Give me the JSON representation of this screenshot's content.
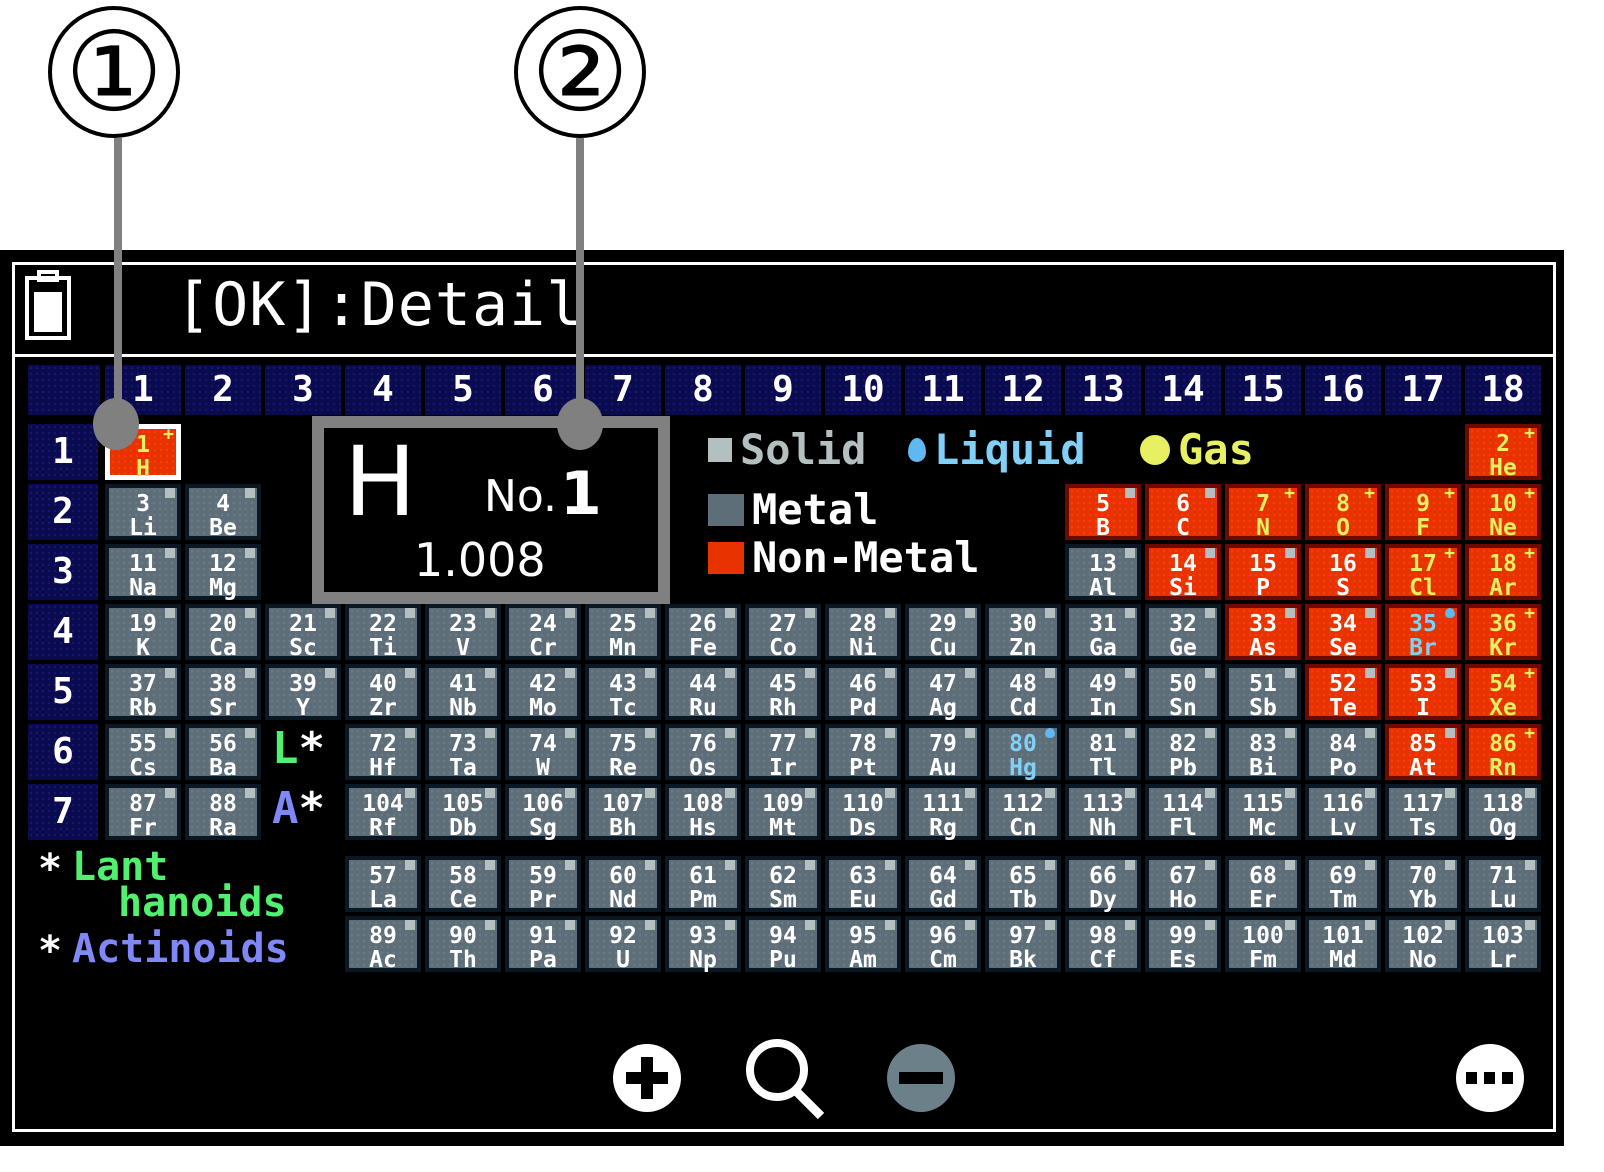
{
  "callouts": [
    "①",
    "②"
  ],
  "header": {
    "title": "[OK]:Detail",
    "battery_icon": "battery-icon"
  },
  "groups": [
    "1",
    "2",
    "3",
    "4",
    "5",
    "6",
    "7",
    "8",
    "9",
    "10",
    "11",
    "12",
    "13",
    "14",
    "15",
    "16",
    "17",
    "18"
  ],
  "periods": [
    "1",
    "2",
    "3",
    "4",
    "5",
    "6",
    "7"
  ],
  "detail": {
    "symbol": "H",
    "number_label": "No.",
    "number": "1",
    "mass": "1.008"
  },
  "legend": {
    "solid": "Solid",
    "liquid": "Liquid",
    "gas": "Gas",
    "metal": "Metal",
    "nonmetal": "Non-Metal"
  },
  "colors": {
    "metal": "#5e6e78",
    "nonmetal": "#e83200",
    "solid": "#b4c0c0",
    "liquid": "#80d0f8",
    "gas": "#e6f060",
    "lanthanoid": "#50f070",
    "actinoid": "#8088f8",
    "header": "#0a0a4e"
  },
  "series": {
    "lanthanoid_marker": "L",
    "actinoid_marker": "A",
    "star": "*",
    "lanthanoid_line1": "Lant",
    "lanthanoid_line2": "hanoids",
    "actinoid": "Actinoids"
  },
  "selected": 1,
  "elements": [
    [
      1,
      "H",
      "N",
      "g"
    ],
    [
      2,
      "He",
      "N",
      "g"
    ],
    [
      3,
      "Li",
      "M",
      "s"
    ],
    [
      4,
      "Be",
      "M",
      "s"
    ],
    [
      5,
      "B",
      "N",
      "s"
    ],
    [
      6,
      "C",
      "N",
      "s"
    ],
    [
      7,
      "N",
      "N",
      "g"
    ],
    [
      8,
      "O",
      "N",
      "g"
    ],
    [
      9,
      "F",
      "N",
      "g"
    ],
    [
      10,
      "Ne",
      "N",
      "g"
    ],
    [
      11,
      "Na",
      "M",
      "s"
    ],
    [
      12,
      "Mg",
      "M",
      "s"
    ],
    [
      13,
      "Al",
      "M",
      "s"
    ],
    [
      14,
      "Si",
      "N",
      "s"
    ],
    [
      15,
      "P",
      "N",
      "s"
    ],
    [
      16,
      "S",
      "N",
      "s"
    ],
    [
      17,
      "Cl",
      "N",
      "g"
    ],
    [
      18,
      "Ar",
      "N",
      "g"
    ],
    [
      19,
      "K",
      "M",
      "s"
    ],
    [
      20,
      "Ca",
      "M",
      "s"
    ],
    [
      21,
      "Sc",
      "M",
      "s"
    ],
    [
      22,
      "Ti",
      "M",
      "s"
    ],
    [
      23,
      "V",
      "M",
      "s"
    ],
    [
      24,
      "Cr",
      "M",
      "s"
    ],
    [
      25,
      "Mn",
      "M",
      "s"
    ],
    [
      26,
      "Fe",
      "M",
      "s"
    ],
    [
      27,
      "Co",
      "M",
      "s"
    ],
    [
      28,
      "Ni",
      "M",
      "s"
    ],
    [
      29,
      "Cu",
      "M",
      "s"
    ],
    [
      30,
      "Zn",
      "M",
      "s"
    ],
    [
      31,
      "Ga",
      "M",
      "s"
    ],
    [
      32,
      "Ge",
      "M",
      "s"
    ],
    [
      33,
      "As",
      "N",
      "s"
    ],
    [
      34,
      "Se",
      "N",
      "s"
    ],
    [
      35,
      "Br",
      "N",
      "l"
    ],
    [
      36,
      "Kr",
      "N",
      "g"
    ],
    [
      37,
      "Rb",
      "M",
      "s"
    ],
    [
      38,
      "Sr",
      "M",
      "s"
    ],
    [
      39,
      "Y",
      "M",
      "s"
    ],
    [
      40,
      "Zr",
      "M",
      "s"
    ],
    [
      41,
      "Nb",
      "M",
      "s"
    ],
    [
      42,
      "Mo",
      "M",
      "s"
    ],
    [
      43,
      "Tc",
      "M",
      "s"
    ],
    [
      44,
      "Ru",
      "M",
      "s"
    ],
    [
      45,
      "Rh",
      "M",
      "s"
    ],
    [
      46,
      "Pd",
      "M",
      "s"
    ],
    [
      47,
      "Ag",
      "M",
      "s"
    ],
    [
      48,
      "Cd",
      "M",
      "s"
    ],
    [
      49,
      "In",
      "M",
      "s"
    ],
    [
      50,
      "Sn",
      "M",
      "s"
    ],
    [
      51,
      "Sb",
      "M",
      "s"
    ],
    [
      52,
      "Te",
      "N",
      "s"
    ],
    [
      53,
      "I",
      "N",
      "s"
    ],
    [
      54,
      "Xe",
      "N",
      "g"
    ],
    [
      55,
      "Cs",
      "M",
      "s"
    ],
    [
      56,
      "Ba",
      "M",
      "s"
    ],
    [
      57,
      "La",
      "M",
      "s"
    ],
    [
      58,
      "Ce",
      "M",
      "s"
    ],
    [
      59,
      "Pr",
      "M",
      "s"
    ],
    [
      60,
      "Nd",
      "M",
      "s"
    ],
    [
      61,
      "Pm",
      "M",
      "s"
    ],
    [
      62,
      "Sm",
      "M",
      "s"
    ],
    [
      63,
      "Eu",
      "M",
      "s"
    ],
    [
      64,
      "Gd",
      "M",
      "s"
    ],
    [
      65,
      "Tb",
      "M",
      "s"
    ],
    [
      66,
      "Dy",
      "M",
      "s"
    ],
    [
      67,
      "Ho",
      "M",
      "s"
    ],
    [
      68,
      "Er",
      "M",
      "s"
    ],
    [
      69,
      "Tm",
      "M",
      "s"
    ],
    [
      70,
      "Yb",
      "M",
      "s"
    ],
    [
      71,
      "Lu",
      "M",
      "s"
    ],
    [
      72,
      "Hf",
      "M",
      "s"
    ],
    [
      73,
      "Ta",
      "M",
      "s"
    ],
    [
      74,
      "W",
      "M",
      "s"
    ],
    [
      75,
      "Re",
      "M",
      "s"
    ],
    [
      76,
      "Os",
      "M",
      "s"
    ],
    [
      77,
      "Ir",
      "M",
      "s"
    ],
    [
      78,
      "Pt",
      "M",
      "s"
    ],
    [
      79,
      "Au",
      "M",
      "s"
    ],
    [
      80,
      "Hg",
      "M",
      "l"
    ],
    [
      81,
      "Tl",
      "M",
      "s"
    ],
    [
      82,
      "Pb",
      "M",
      "s"
    ],
    [
      83,
      "Bi",
      "M",
      "s"
    ],
    [
      84,
      "Po",
      "M",
      "s"
    ],
    [
      85,
      "At",
      "N",
      "s"
    ],
    [
      86,
      "Rn",
      "N",
      "g"
    ],
    [
      87,
      "Fr",
      "M",
      "s"
    ],
    [
      88,
      "Ra",
      "M",
      "s"
    ],
    [
      89,
      "Ac",
      "M",
      "s"
    ],
    [
      90,
      "Th",
      "M",
      "s"
    ],
    [
      91,
      "Pa",
      "M",
      "s"
    ],
    [
      92,
      "U",
      "M",
      "s"
    ],
    [
      93,
      "Np",
      "M",
      "s"
    ],
    [
      94,
      "Pu",
      "M",
      "s"
    ],
    [
      95,
      "Am",
      "M",
      "s"
    ],
    [
      96,
      "Cm",
      "M",
      "s"
    ],
    [
      97,
      "Bk",
      "M",
      "s"
    ],
    [
      98,
      "Cf",
      "M",
      "s"
    ],
    [
      99,
      "Es",
      "M",
      "s"
    ],
    [
      100,
      "Fm",
      "M",
      "s"
    ],
    [
      101,
      "Md",
      "M",
      "s"
    ],
    [
      102,
      "No",
      "M",
      "s"
    ],
    [
      103,
      "Lr",
      "M",
      "s"
    ],
    [
      104,
      "Rf",
      "M",
      "s"
    ],
    [
      105,
      "Db",
      "M",
      "s"
    ],
    [
      106,
      "Sg",
      "M",
      "s"
    ],
    [
      107,
      "Bh",
      "M",
      "s"
    ],
    [
      108,
      "Hs",
      "M",
      "s"
    ],
    [
      109,
      "Mt",
      "M",
      "s"
    ],
    [
      110,
      "Ds",
      "M",
      "s"
    ],
    [
      111,
      "Rg",
      "M",
      "s"
    ],
    [
      112,
      "Cn",
      "M",
      "s"
    ],
    [
      113,
      "Nh",
      "M",
      "s"
    ],
    [
      114,
      "Fl",
      "M",
      "s"
    ],
    [
      115,
      "Mc",
      "M",
      "s"
    ],
    [
      116,
      "Lv",
      "M",
      "s"
    ],
    [
      117,
      "Ts",
      "M",
      "s"
    ],
    [
      118,
      "Og",
      "M",
      "s"
    ]
  ],
  "toolbar": {
    "zoom_in": "plus-circle-icon",
    "search": "magnifier-icon",
    "zoom_out": "minus-circle-icon",
    "more": "more-icon"
  }
}
